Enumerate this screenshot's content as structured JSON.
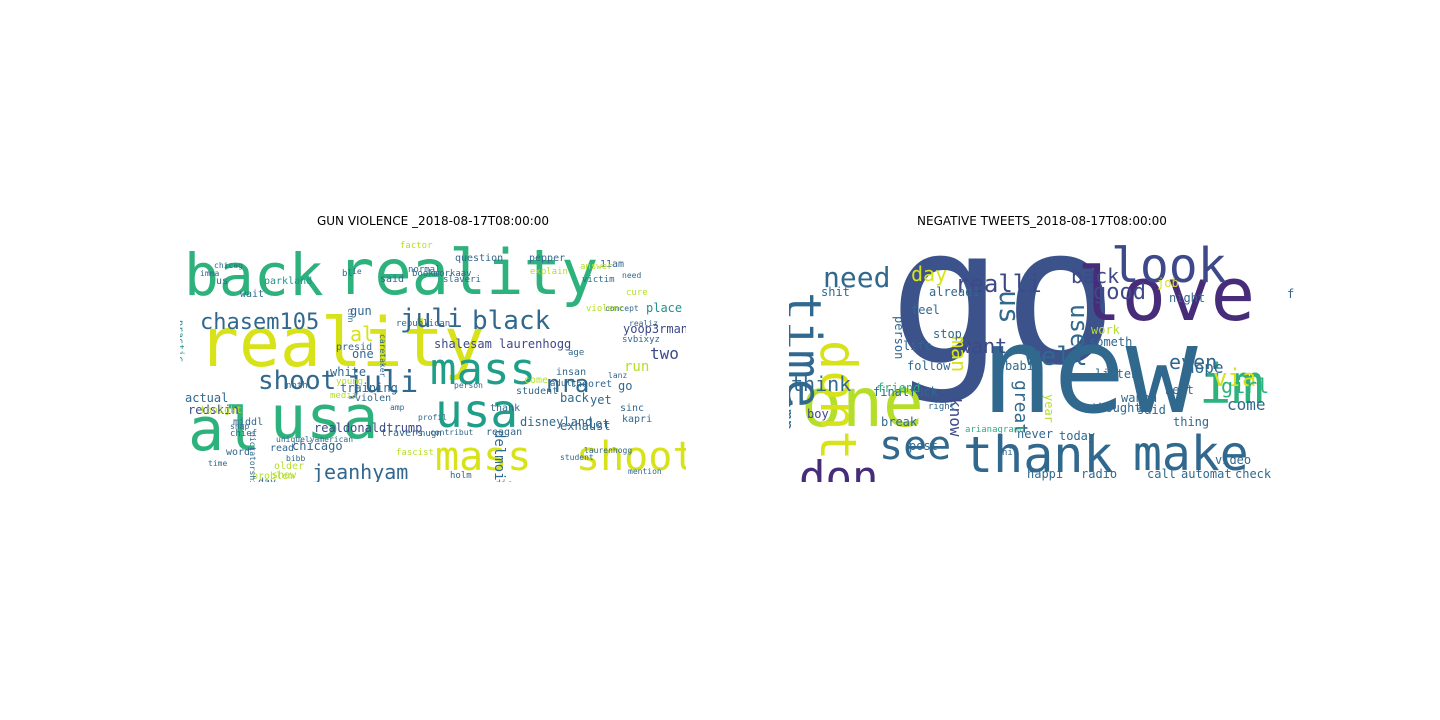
{
  "chart_data": [
    {
      "type": "wordcloud",
      "title": "GUN VIOLENCE _2018-08-17T08:00:00",
      "words": [
        {
          "text": "back",
          "color": "#2db27d"
        },
        {
          "text": "reality",
          "color": "#2db27d"
        },
        {
          "text": "reality",
          "color": "#d8e219"
        },
        {
          "text": "al",
          "color": "#d8e219"
        },
        {
          "text": "al",
          "color": "#2db27d"
        },
        {
          "text": "usa",
          "color": "#2db27d"
        },
        {
          "text": "usa",
          "color": "#1f9e89"
        },
        {
          "text": "mass",
          "color": "#1f9e89"
        },
        {
          "text": "mass",
          "color": "#d8e219"
        },
        {
          "text": "shoot",
          "color": "#d8e219"
        },
        {
          "text": "chasem105",
          "color": "#31688e"
        },
        {
          "text": "juli",
          "color": "#31688e"
        },
        {
          "text": "black",
          "color": "#31688e"
        },
        {
          "text": "shoot",
          "color": "#31688e"
        },
        {
          "text": "juli",
          "color": "#31688e"
        },
        {
          "text": "nra",
          "color": "#31688e"
        },
        {
          "text": "jeanhyam",
          "color": "#31688e"
        },
        {
          "text": "namaki94665814",
          "color": "#1f9e89"
        },
        {
          "text": "shalesam",
          "color": "#1f9e89"
        },
        {
          "text": "shalesam laurenhogg",
          "color": "#3e4989"
        },
        {
          "text": "yoop3rman",
          "color": "#3e4989"
        },
        {
          "text": "gun",
          "color": "#31688e"
        },
        {
          "text": "chicago",
          "color": "#31688e"
        },
        {
          "text": "practic",
          "color": "#21918c"
        },
        {
          "text": "realdonaldtrump",
          "color": "#3e4989"
        },
        {
          "text": "redskin",
          "color": "#3e4989"
        },
        {
          "text": "actual",
          "color": "#31688e"
        },
        {
          "text": "problem",
          "color": "#b5de2b"
        },
        {
          "text": "book",
          "color": "#31688e"
        },
        {
          "text": "countri",
          "color": "#1f9e89"
        },
        {
          "text": "capitalist",
          "color": "#3e4989"
        },
        {
          "text": "two",
          "color": "#3e4989"
        },
        {
          "text": "run",
          "color": "#b5de2b"
        },
        {
          "text": "go",
          "color": "#31688e"
        },
        {
          "text": "yet",
          "color": "#31688e"
        },
        {
          "text": "lot",
          "color": "#31688e"
        },
        {
          "text": "place",
          "color": "#21918c"
        },
        {
          "text": "delmoi",
          "color": "#31688e"
        },
        {
          "text": "exhaust",
          "color": "#31688e"
        },
        {
          "text": "disneyland",
          "color": "#31688e"
        },
        {
          "text": "back",
          "color": "#31688e"
        },
        {
          "text": "one",
          "color": "#31688e"
        },
        {
          "text": "white",
          "color": "#31688e"
        },
        {
          "text": "training",
          "color": "#31688e"
        },
        {
          "text": "young",
          "color": "#b5de2b"
        },
        {
          "text": "us",
          "color": "#31688e"
        },
        {
          "text": "parkland",
          "color": "#21918c"
        },
        {
          "text": "wait",
          "color": "#31688e"
        },
        {
          "text": "question",
          "color": "#31688e"
        },
        {
          "text": "pepper",
          "color": "#31688e"
        },
        {
          "text": "11am",
          "color": "#31688e"
        },
        {
          "text": "explain",
          "color": "#b5de2b"
        },
        {
          "text": "presid",
          "color": "#31688e"
        },
        {
          "text": "word",
          "color": "#31688e"
        },
        {
          "text": "day",
          "color": "#31688e"
        },
        {
          "text": "older",
          "color": "#b5de2b"
        },
        {
          "text": "read",
          "color": "#31688e"
        },
        {
          "text": "travers",
          "color": "#31688e"
        },
        {
          "text": "whiskey",
          "color": "#31688e"
        },
        {
          "text": "singl",
          "color": "#31688e"
        },
        {
          "text": "die",
          "color": "#31688e"
        },
        {
          "text": "theoret",
          "color": "#31688e"
        },
        {
          "text": "student",
          "color": "#31688e"
        },
        {
          "text": "thank",
          "color": "#31688e"
        },
        {
          "text": "reagan",
          "color": "#31688e"
        },
        {
          "text": "hangov",
          "color": "#31688e"
        },
        {
          "text": "bush",
          "color": "#31688e"
        },
        {
          "text": "insan",
          "color": "#31688e"
        },
        {
          "text": "sinc",
          "color": "#31688e"
        },
        {
          "text": "kapri",
          "color": "#31688e"
        },
        {
          "text": "come",
          "color": "#b5de2b"
        },
        {
          "text": "middl",
          "color": "#31688e"
        },
        {
          "text": "tonight",
          "color": "#b5de2b"
        },
        {
          "text": "chief",
          "color": "#31688e"
        },
        {
          "text": "snap",
          "color": "#31688e"
        },
        {
          "text": "time",
          "color": "#31688e"
        },
        {
          "text": "person",
          "color": "#31688e"
        },
        {
          "text": "nugn",
          "color": "#31688e"
        },
        {
          "text": "holm",
          "color": "#31688e"
        },
        {
          "text": "contribut",
          "color": "#31688e"
        },
        {
          "text": "fascist",
          "color": "#b5de2b"
        },
        {
          "text": "show",
          "color": "#b5de2b"
        },
        {
          "text": "conserv",
          "color": "#b5de2b"
        },
        {
          "text": "modern",
          "color": "#31688e"
        },
        {
          "text": "outlaw",
          "color": "#31688e"
        },
        {
          "text": "tri",
          "color": "#31688e"
        },
        {
          "text": "profil",
          "color": "#31688e"
        },
        {
          "text": "laurenhogg",
          "color": "#31688e"
        },
        {
          "text": "student",
          "color": "#31688e"
        },
        {
          "text": "citizens",
          "color": "#31688e"
        },
        {
          "text": "mention",
          "color": "#31688e"
        },
        {
          "text": "violenc",
          "color": "#b5de2b"
        },
        {
          "text": "adult",
          "color": "#31688e"
        },
        {
          "text": "age",
          "color": "#31688e"
        },
        {
          "text": "cure",
          "color": "#b5de2b"
        },
        {
          "text": "slaveri",
          "color": "#31688e"
        },
        {
          "text": "normal",
          "color": "#31688e"
        },
        {
          "text": "answer",
          "color": "#b5de2b"
        },
        {
          "text": "victim",
          "color": "#31688e"
        },
        {
          "text": "concept",
          "color": "#31688e"
        },
        {
          "text": "realiz",
          "color": "#31688e"
        },
        {
          "text": "need",
          "color": "#31688e"
        },
        {
          "text": "said",
          "color": "#31688e"
        },
        {
          "text": "bl",
          "color": "#31688e"
        },
        {
          "text": "ie",
          "color": "#31688e"
        },
        {
          "text": "chicag",
          "color": "#31688e"
        },
        {
          "text": "imma",
          "color": "#31688e"
        },
        {
          "text": "bookmorkaav",
          "color": "#31688e"
        },
        {
          "text": "bibb",
          "color": "#31688e"
        },
        {
          "text": "dictatorship",
          "color": "#31688e"
        },
        {
          "text": "uniquelyamerican",
          "color": "#31688e"
        },
        {
          "text": "violen",
          "color": "#31688e"
        },
        {
          "text": "media",
          "color": "#b5de2b"
        },
        {
          "text": "noth",
          "color": "#31688e"
        },
        {
          "text": "amp",
          "color": "#31688e"
        },
        {
          "text": "cnn",
          "color": "#31688e"
        },
        {
          "text": "lanz",
          "color": "#31688e"
        },
        {
          "text": "svbixyz",
          "color": "#31688e"
        },
        {
          "text": "republican",
          "color": "#31688e"
        },
        {
          "text": "caretaker",
          "color": "#31688e"
        },
        {
          "text": "factor",
          "color": "#b5de2b"
        }
      ]
    },
    {
      "type": "wordcloud",
      "title": "NEGATIVE TWEETS_2018-08-17T08:00:00",
      "words": [
        {
          "text": "go",
          "color": "#3b528b"
        },
        {
          "text": "new",
          "color": "#31688e"
        },
        {
          "text": "love",
          "color": "#472c7a"
        },
        {
          "text": "look",
          "color": "#3e4989"
        },
        {
          "text": "one",
          "color": "#b5de2b"
        },
        {
          "text": "time",
          "color": "#31688e"
        },
        {
          "text": "dont",
          "color": "#d8e219"
        },
        {
          "text": "thank",
          "color": "#31688e"
        },
        {
          "text": "make",
          "color": "#31688e"
        },
        {
          "text": "im",
          "color": "#2db27d"
        },
        {
          "text": "see",
          "color": "#31688e"
        },
        {
          "text": "don",
          "color": "#472c7a"
        },
        {
          "text": "need",
          "color": "#31688e"
        },
        {
          "text": "realli",
          "color": "#3e4989"
        },
        {
          "text": "back",
          "color": "#3e4989"
        },
        {
          "text": "good",
          "color": "#3e4989"
        },
        {
          "text": "day",
          "color": "#d8e219"
        },
        {
          "text": "well",
          "color": "#31688e"
        },
        {
          "text": "via",
          "color": "#d8e219"
        },
        {
          "text": "girl",
          "color": "#2db27d"
        },
        {
          "text": "even",
          "color": "#31688e"
        },
        {
          "text": "us",
          "color": "#31688e"
        },
        {
          "text": "use",
          "color": "#31688e"
        },
        {
          "text": "want",
          "color": "#3e4989"
        },
        {
          "text": "man",
          "color": "#d8e219"
        },
        {
          "text": "think",
          "color": "#31688e"
        },
        {
          "text": "peopl",
          "color": "#31688e"
        },
        {
          "text": "got",
          "color": "#31688e"
        },
        {
          "text": "amp",
          "color": "#31688e"
        },
        {
          "text": "great",
          "color": "#31688e"
        },
        {
          "text": "know",
          "color": "#3e4989"
        },
        {
          "text": "come",
          "color": "#31688e"
        },
        {
          "text": "hope",
          "color": "#31688e"
        },
        {
          "text": "job",
          "color": "#d8e219"
        },
        {
          "text": "shit",
          "color": "#31688e"
        },
        {
          "text": "final",
          "color": "#31688e"
        },
        {
          "text": "boy",
          "color": "#3e4989"
        },
        {
          "text": "friend",
          "color": "#2db27d"
        },
        {
          "text": "fuck",
          "color": "#31688e"
        },
        {
          "text": "break",
          "color": "#31688e"
        },
        {
          "text": "post",
          "color": "#31688e"
        },
        {
          "text": "happi",
          "color": "#31688e"
        },
        {
          "text": "radio",
          "color": "#31688e"
        },
        {
          "text": "call",
          "color": "#31688e"
        },
        {
          "text": "automat",
          "color": "#31688e"
        },
        {
          "text": "check",
          "color": "#31688e"
        },
        {
          "text": "video",
          "color": "#31688e"
        },
        {
          "text": "wanna",
          "color": "#31688e"
        },
        {
          "text": "said",
          "color": "#31688e"
        },
        {
          "text": "thing",
          "color": "#31688e"
        },
        {
          "text": "today",
          "color": "#31688e"
        },
        {
          "text": "never",
          "color": "#31688e"
        },
        {
          "text": "babi",
          "color": "#31688e"
        },
        {
          "text": "follow",
          "color": "#31688e"
        },
        {
          "text": "alreadi",
          "color": "#31688e"
        },
        {
          "text": "feel",
          "color": "#31688e"
        },
        {
          "text": "life",
          "color": "#31688e"
        },
        {
          "text": "work",
          "color": "#b5de2b"
        },
        {
          "text": "someth",
          "color": "#31688e"
        },
        {
          "text": "thought",
          "color": "#31688e"
        },
        {
          "text": "night",
          "color": "#31688e"
        },
        {
          "text": "stop",
          "color": "#31688e"
        },
        {
          "text": "best",
          "color": "#31688e"
        },
        {
          "text": "listen",
          "color": "#31688e"
        },
        {
          "text": "person",
          "color": "#31688e"
        },
        {
          "text": "year",
          "color": "#b5de2b"
        },
        {
          "text": "friday",
          "color": "#31688e"
        },
        {
          "text": "right",
          "color": "#31688e"
        },
        {
          "text": "arianagrand",
          "color": "#2db27d"
        },
        {
          "text": "hi",
          "color": "#31688e"
        }
      ]
    }
  ]
}
